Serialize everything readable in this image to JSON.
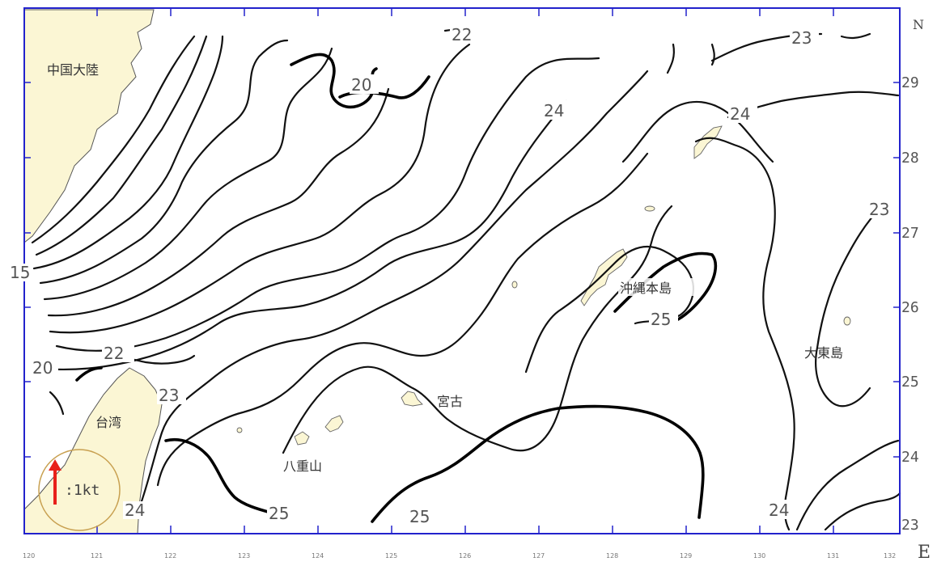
{
  "map": {
    "north_label": "N",
    "east_label": "E",
    "latitude_labels": [
      "29",
      "28",
      "27",
      "26",
      "25",
      "24",
      "23"
    ],
    "longitude_labels": [
      "120",
      "121",
      "122",
      "123",
      "124",
      "125",
      "126",
      "127",
      "128",
      "129",
      "130",
      "131",
      "132"
    ],
    "place_names": {
      "china": "中国大陸",
      "taiwan": "台湾",
      "okinawa": "沖縄本島",
      "miyako": "宮古",
      "yaeyama": "八重山",
      "daito": "大東島"
    },
    "contour_labels": [
      "15",
      "20",
      "22",
      "23",
      "20",
      "22",
      "23",
      "24",
      "24",
      "23",
      "24",
      "25",
      "24",
      "25",
      "25",
      "24"
    ],
    "legend": {
      "label": ":1kt",
      "arrow_color": "#e8201a"
    },
    "colors": {
      "frame": "#2222cc",
      "land": "#fbf6d4",
      "contour": "#111111"
    }
  }
}
